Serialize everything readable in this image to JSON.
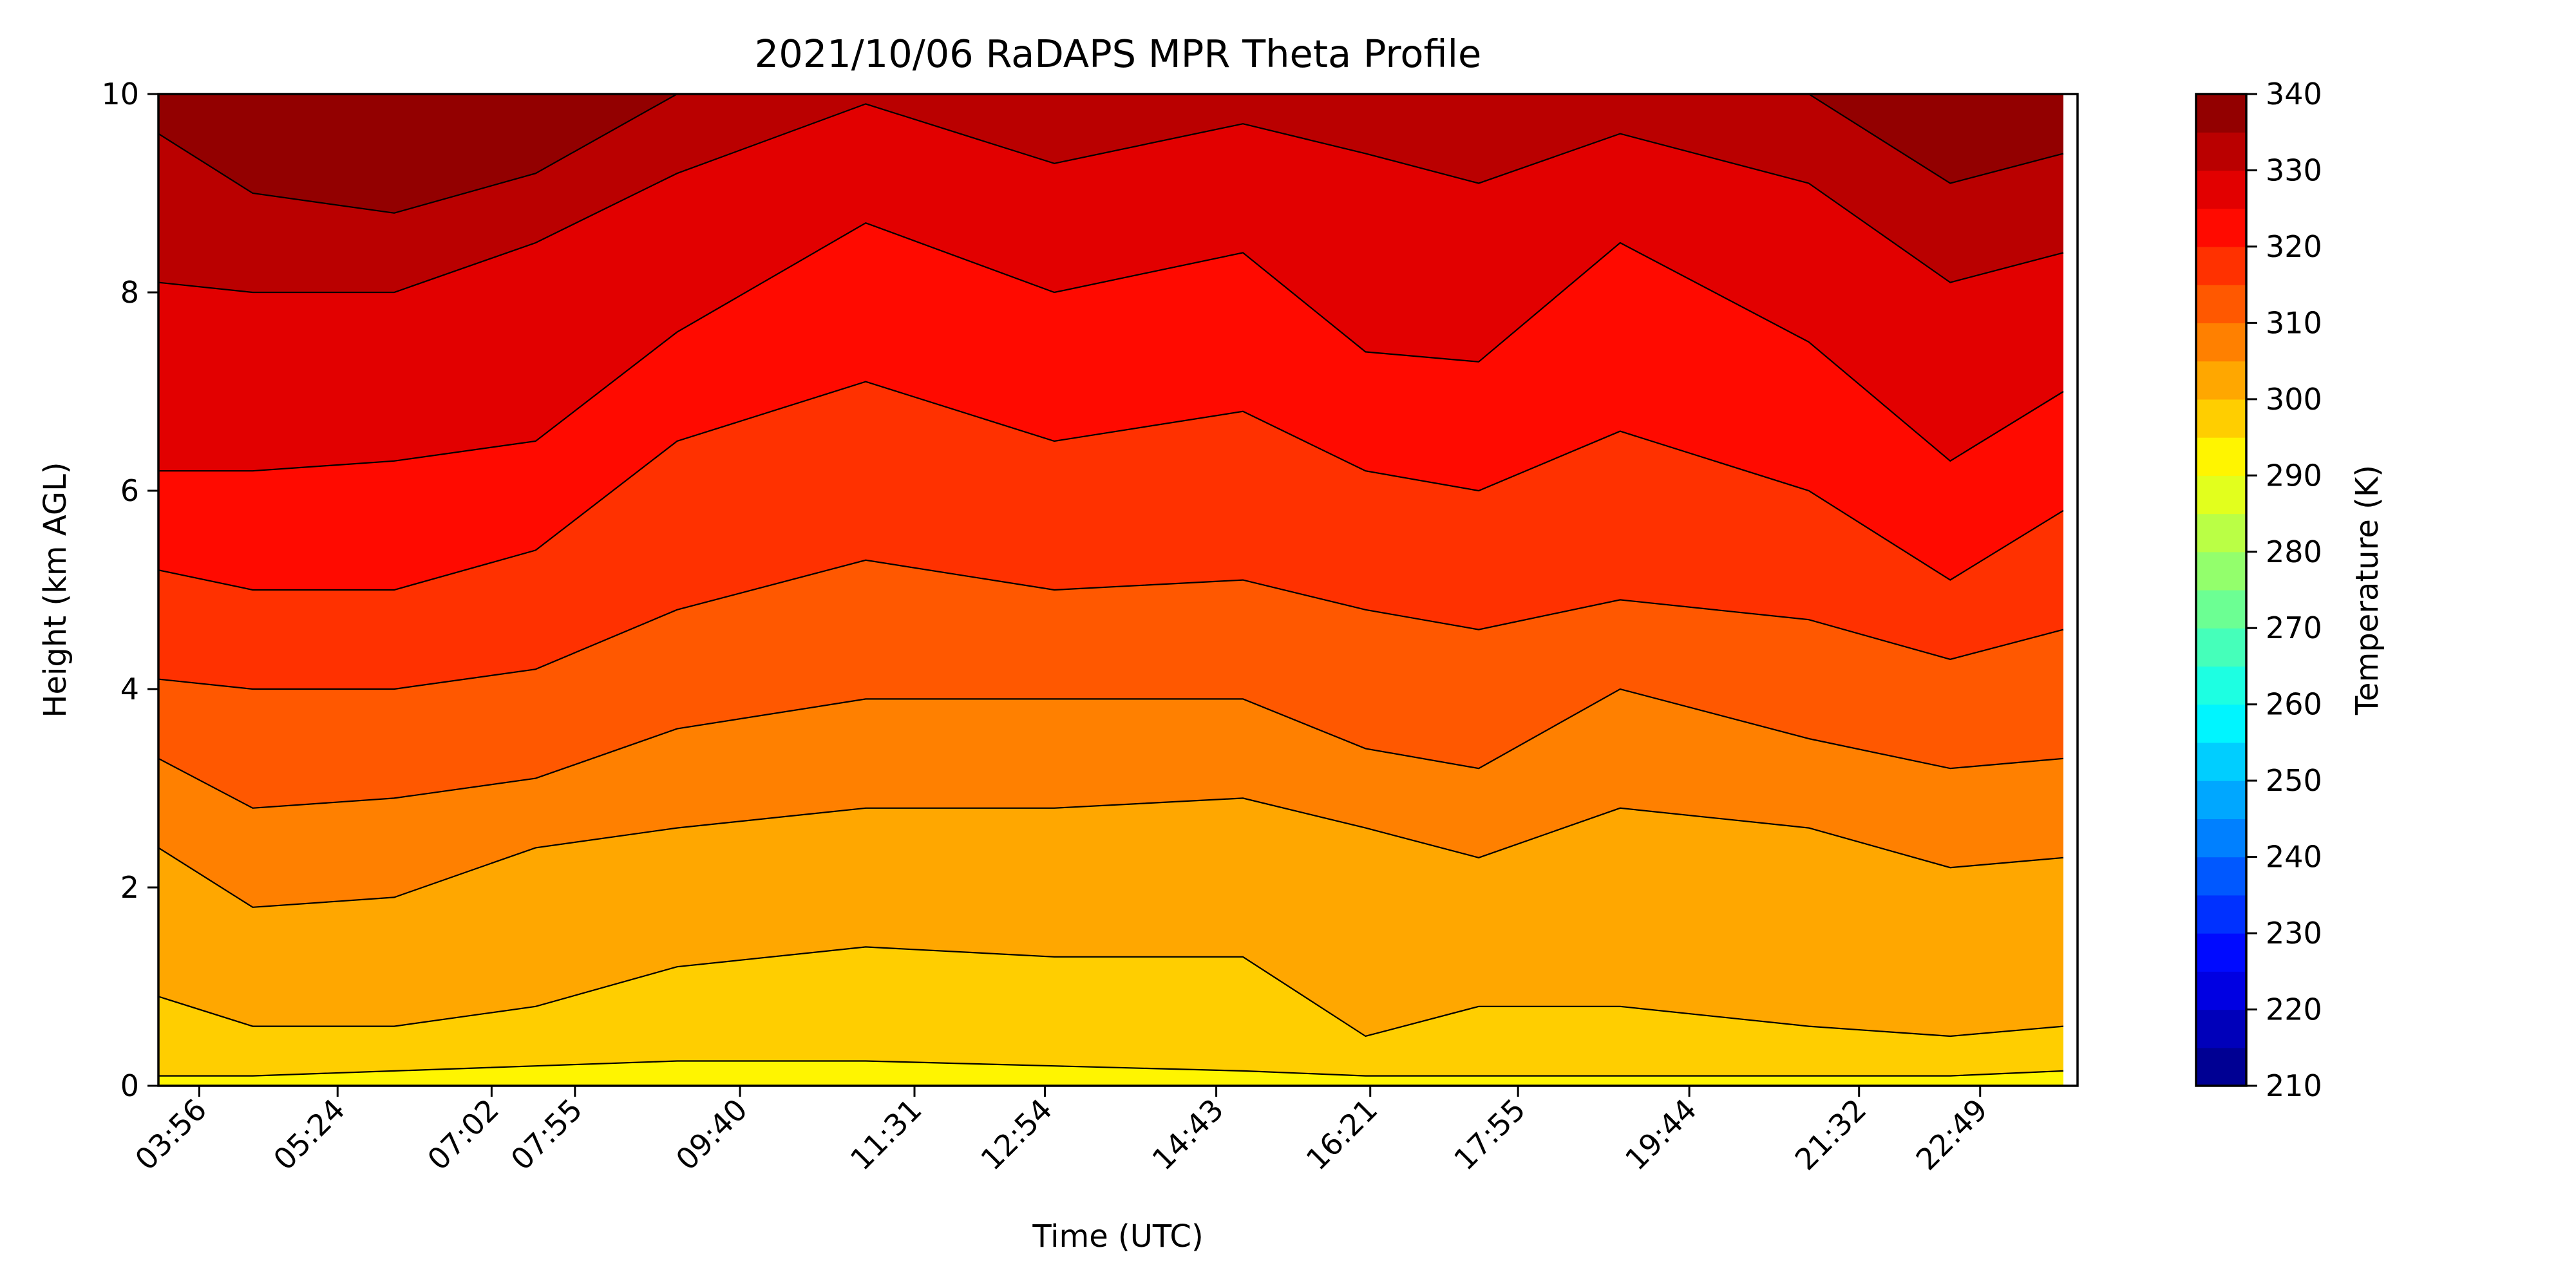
{
  "chart_data": {
    "type": "heatmap",
    "title": "2021/10/06 RaDAPS MPR Theta Profile",
    "xlabel": "Time (UTC)",
    "ylabel": "Height (km AGL)",
    "x_ticks": [
      "03:56",
      "05:24",
      "07:02",
      "07:55",
      "09:40",
      "11:31",
      "12:54",
      "14:43",
      "16:21",
      "17:55",
      "19:44",
      "21:32",
      "22:49"
    ],
    "x_tick_hours": [
      3.933,
      5.4,
      7.033,
      7.917,
      9.667,
      11.517,
      12.9,
      14.717,
      16.35,
      17.917,
      19.733,
      21.533,
      22.817
    ],
    "xlim_hours": [
      3.5,
      23.85
    ],
    "ylim": [
      0,
      10
    ],
    "y_ticks": [
      0,
      2,
      4,
      6,
      8,
      10
    ],
    "colorbar": {
      "label": "Temperature (K)",
      "ticks": [
        210,
        220,
        230,
        240,
        250,
        260,
        270,
        280,
        290,
        300,
        310,
        320,
        330,
        340
      ],
      "range": [
        210,
        340
      ],
      "step": 5,
      "colormap": "jet"
    },
    "contour_levels_K": [
      295,
      300,
      305,
      310,
      315,
      320,
      325,
      330,
      335,
      340
    ],
    "contour_heights_km": [
      {
        "level_K": 295,
        "t_hours": [
          3.5,
          4.5,
          6,
          7.5,
          9,
          11,
          13,
          15,
          16.3,
          17.5,
          19,
          21,
          22.5,
          23.7
        ],
        "height_km": [
          0.1,
          0.1,
          0.15,
          0.2,
          0.25,
          0.25,
          0.2,
          0.15,
          0.1,
          0.1,
          0.1,
          0.1,
          0.1,
          0.15
        ]
      },
      {
        "level_K": 300,
        "t_hours": [
          3.5,
          4.5,
          6,
          7.5,
          9,
          11,
          13,
          15,
          16.3,
          17.5,
          19,
          21,
          22.5,
          23.7
        ],
        "height_km": [
          0.9,
          0.6,
          0.6,
          0.8,
          1.2,
          1.4,
          1.3,
          1.3,
          0.5,
          0.8,
          0.8,
          0.6,
          0.5,
          0.6
        ]
      },
      {
        "level_K": 305,
        "t_hours": [
          3.5,
          4.5,
          6,
          7.5,
          9,
          11,
          13,
          15,
          16.3,
          17.5,
          19,
          21,
          22.5,
          23.7
        ],
        "height_km": [
          2.4,
          1.8,
          1.9,
          2.4,
          2.6,
          2.8,
          2.8,
          2.9,
          2.6,
          2.3,
          2.8,
          2.6,
          2.2,
          2.3
        ]
      },
      {
        "level_K": 310,
        "t_hours": [
          3.5,
          4.5,
          6,
          7.5,
          9,
          11,
          13,
          15,
          16.3,
          17.5,
          19,
          21,
          22.5,
          23.7
        ],
        "height_km": [
          3.3,
          2.8,
          2.9,
          3.1,
          3.6,
          3.9,
          3.9,
          3.9,
          3.4,
          3.2,
          4.0,
          3.5,
          3.2,
          3.3
        ]
      },
      {
        "level_K": 315,
        "t_hours": [
          3.5,
          4.5,
          6,
          7.5,
          9,
          11,
          13,
          15,
          16.3,
          17.5,
          19,
          21,
          22.5,
          23.7
        ],
        "height_km": [
          4.1,
          4.0,
          4.0,
          4.2,
          4.8,
          5.3,
          5.0,
          5.1,
          4.8,
          4.6,
          4.9,
          4.7,
          4.3,
          4.6
        ]
      },
      {
        "level_K": 320,
        "t_hours": [
          3.5,
          4.5,
          6,
          7.5,
          9,
          11,
          13,
          15,
          16.3,
          17.5,
          19,
          21,
          22.5,
          23.7
        ],
        "height_km": [
          5.2,
          5.0,
          5.0,
          5.4,
          6.5,
          7.1,
          6.5,
          6.8,
          6.2,
          6.0,
          6.6,
          6.0,
          5.1,
          5.8
        ]
      },
      {
        "level_K": 325,
        "t_hours": [
          3.5,
          4.5,
          6,
          7.5,
          9,
          11,
          13,
          15,
          16.3,
          17.5,
          19,
          21,
          22.5,
          23.7
        ],
        "height_km": [
          6.2,
          6.2,
          6.3,
          6.5,
          7.6,
          8.7,
          8.0,
          8.4,
          7.4,
          7.3,
          8.5,
          7.5,
          6.3,
          7.0
        ]
      },
      {
        "level_K": 330,
        "t_hours": [
          3.5,
          4.5,
          6,
          7.5,
          9,
          11,
          13,
          15,
          16.3,
          17.5,
          19,
          21,
          22.5,
          23.7
        ],
        "height_km": [
          8.1,
          8.0,
          8.0,
          8.5,
          9.2,
          9.9,
          9.3,
          9.7,
          9.4,
          9.1,
          9.6,
          9.1,
          8.1,
          8.4
        ]
      },
      {
        "level_K": 335,
        "t_hours": [
          3.5,
          4.5,
          6,
          7.5,
          9,
          11,
          13,
          15,
          16.3,
          17.5,
          19,
          21,
          22.5,
          23.7
        ],
        "height_km": [
          9.6,
          9.0,
          8.8,
          9.2,
          10,
          10,
          10,
          10,
          10,
          10,
          10,
          10,
          9.1,
          9.4
        ]
      }
    ]
  }
}
